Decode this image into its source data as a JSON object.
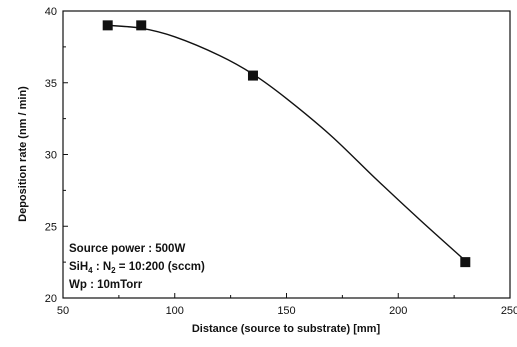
{
  "chart_data": {
    "type": "scatter",
    "xlabel": "Distance (source to substrate) [mm]",
    "ylabel": "Deposition rate (nm / min)",
    "xlim": [
      50,
      250
    ],
    "ylim": [
      20,
      40
    ],
    "xticks": [
      50,
      100,
      150,
      200,
      250
    ],
    "yticks": [
      20,
      25,
      30,
      35,
      40
    ],
    "grid": false,
    "points": [
      {
        "x": 70,
        "y": 39.0
      },
      {
        "x": 85,
        "y": 39.0
      },
      {
        "x": 135,
        "y": 35.5
      },
      {
        "x": 230,
        "y": 22.5
      }
    ],
    "fit_curve": [
      {
        "x": 70,
        "y": 39.0
      },
      {
        "x": 85,
        "y": 38.8
      },
      {
        "x": 100,
        "y": 38.2
      },
      {
        "x": 120,
        "y": 36.9
      },
      {
        "x": 135,
        "y": 35.6
      },
      {
        "x": 150,
        "y": 33.9
      },
      {
        "x": 170,
        "y": 31.3
      },
      {
        "x": 190,
        "y": 28.3
      },
      {
        "x": 210,
        "y": 25.4
      },
      {
        "x": 230,
        "y": 22.6
      }
    ],
    "annotations": {
      "line1": "Source power : 500W",
      "line2_sih": "SiH",
      "line2_sub4": "4",
      "line2_n": " : N",
      "line2_sub2": "2",
      "line2_rest": " = 10:200 (sccm)",
      "line3": "Wp : 10mTorr"
    }
  }
}
